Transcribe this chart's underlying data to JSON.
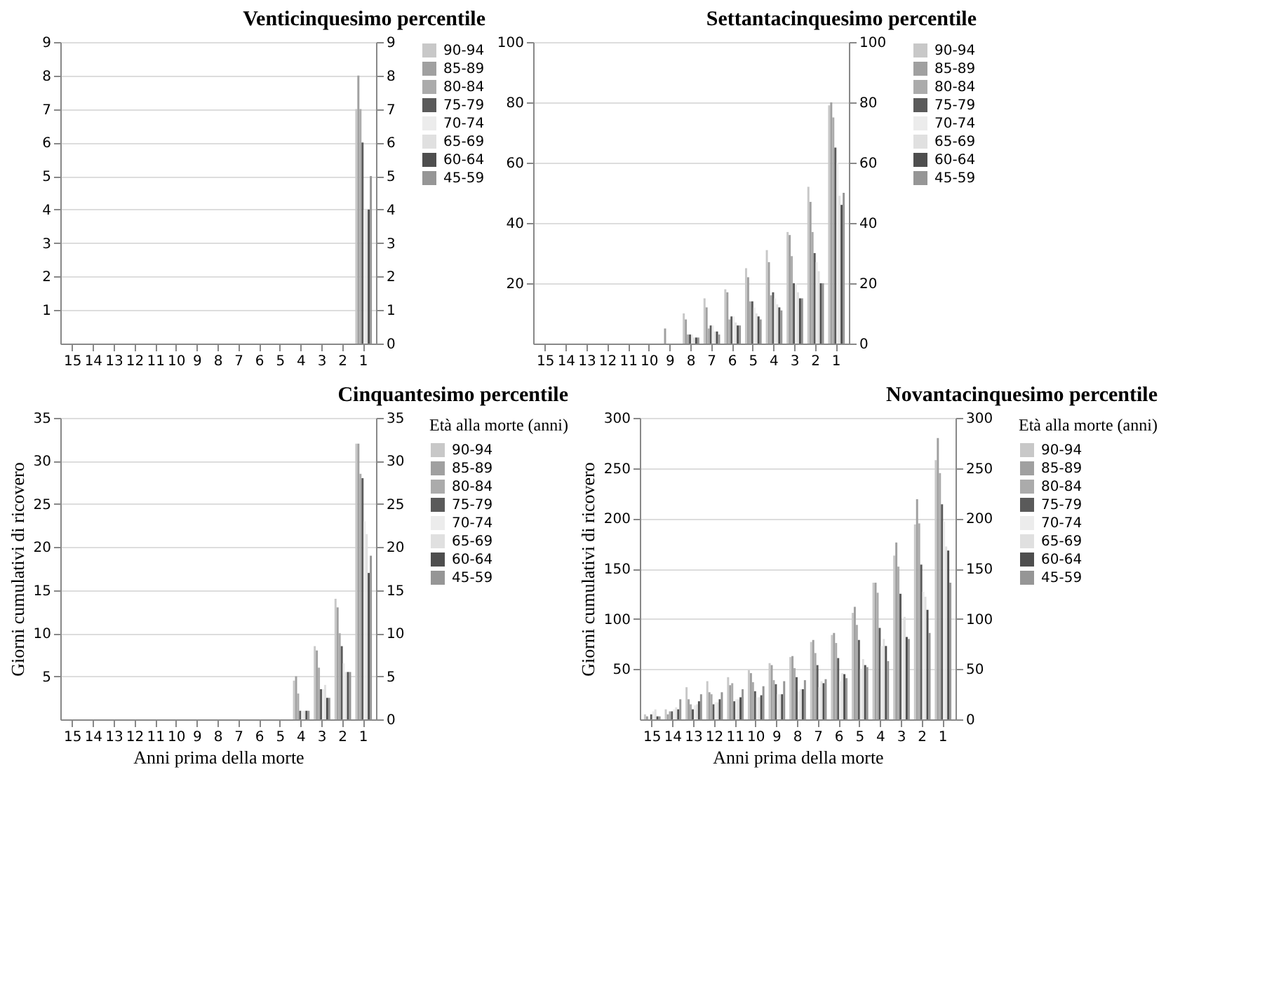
{
  "chart_data": [
    {
      "type": "bar",
      "title": "Venticinquesimo percentile",
      "categories": [
        "15",
        "14",
        "13",
        "12",
        "11",
        "10",
        "9",
        "8",
        "7",
        "6",
        "5",
        "4",
        "3",
        "2",
        "1"
      ],
      "ylim": [
        0,
        9
      ],
      "yticks": [
        1,
        2,
        3,
        4,
        5,
        6,
        7,
        8,
        9
      ],
      "y2lim": [
        0,
        9
      ],
      "y2ticks": [
        0,
        1,
        2,
        3,
        4,
        5,
        6,
        7,
        8,
        9
      ],
      "grid": true,
      "legend": "right",
      "series": [
        {
          "name": "90-94",
          "color": "#c8c8c8",
          "values": [
            0,
            0,
            0,
            0,
            0,
            0,
            0,
            0,
            0,
            0,
            0,
            0,
            0,
            0,
            7
          ]
        },
        {
          "name": "85-89",
          "color": "#a0a0a0",
          "values": [
            0,
            0,
            0,
            0,
            0,
            0,
            0,
            0,
            0,
            0,
            0,
            0,
            0,
            0,
            8
          ]
        },
        {
          "name": "80-84",
          "color": "#ababab",
          "values": [
            0,
            0,
            0,
            0,
            0,
            0,
            0,
            0,
            0,
            0,
            0,
            0,
            0,
            0,
            7
          ]
        },
        {
          "name": "75-79",
          "color": "#5a5a5a",
          "values": [
            0,
            0,
            0,
            0,
            0,
            0,
            0,
            0,
            0,
            0,
            0,
            0,
            0,
            0,
            6
          ]
        },
        {
          "name": "70-74",
          "color": "#ececec",
          "values": [
            0,
            0,
            0,
            0,
            0,
            0,
            0,
            0,
            0,
            0,
            0,
            0,
            0,
            0,
            4
          ]
        },
        {
          "name": "65-69",
          "color": "#e0e0e0",
          "values": [
            0,
            0,
            0,
            0,
            0,
            0,
            0,
            0,
            0,
            0,
            0,
            0,
            0,
            0,
            4
          ]
        },
        {
          "name": "60-64",
          "color": "#4e4e4e",
          "values": [
            0,
            0,
            0,
            0,
            0,
            0,
            0,
            0,
            0,
            0,
            0,
            0,
            0,
            0,
            4
          ]
        },
        {
          "name": "45-59",
          "color": "#969696",
          "values": [
            0,
            0,
            0,
            0,
            0,
            0,
            0,
            0,
            0,
            0,
            0,
            0,
            0,
            0,
            5
          ]
        }
      ]
    },
    {
      "type": "bar",
      "title": "Settantacinquesimo percentile",
      "categories": [
        "15",
        "14",
        "13",
        "12",
        "11",
        "10",
        "9",
        "8",
        "7",
        "6",
        "5",
        "4",
        "3",
        "2",
        "1"
      ],
      "ylim": [
        0,
        100
      ],
      "yticks": [
        20,
        40,
        60,
        80,
        100
      ],
      "y2lim": [
        0,
        100
      ],
      "y2ticks": [
        0,
        20,
        40,
        60,
        80,
        100
      ],
      "grid": true,
      "legend": "right",
      "series": [
        {
          "name": "90-94",
          "color": "#c8c8c8",
          "values": [
            0,
            0,
            0,
            0,
            0,
            0,
            0,
            10,
            15,
            18,
            25,
            31,
            37,
            52,
            79
          ]
        },
        {
          "name": "85-89",
          "color": "#a0a0a0",
          "values": [
            0,
            0,
            0,
            0,
            0,
            0,
            5,
            8,
            12,
            17,
            22,
            27,
            36,
            47,
            80
          ]
        },
        {
          "name": "80-84",
          "color": "#ababab",
          "values": [
            0,
            0,
            0,
            0,
            0,
            0,
            0,
            3,
            5,
            8,
            14,
            16,
            29,
            37,
            75
          ]
        },
        {
          "name": "75-79",
          "color": "#5a5a5a",
          "values": [
            0,
            0,
            0,
            0,
            0,
            0,
            0,
            3,
            6,
            9,
            14,
            17,
            20,
            30,
            65
          ]
        },
        {
          "name": "70-74",
          "color": "#ececec",
          "values": [
            0,
            0,
            0,
            0,
            0,
            0,
            0,
            3,
            6,
            9,
            12,
            15,
            20,
            27,
            60
          ]
        },
        {
          "name": "65-69",
          "color": "#e0e0e0",
          "values": [
            0,
            0,
            0,
            0,
            0,
            0,
            0,
            2,
            4,
            7,
            10,
            13,
            17,
            24,
            49
          ]
        },
        {
          "name": "60-64",
          "color": "#4e4e4e",
          "values": [
            0,
            0,
            0,
            0,
            0,
            0,
            0,
            2,
            4,
            6,
            9,
            12,
            15,
            20,
            46
          ]
        },
        {
          "name": "45-59",
          "color": "#969696",
          "values": [
            0,
            0,
            0,
            0,
            0,
            0,
            0,
            2,
            3,
            6,
            8,
            11,
            15,
            20,
            50
          ]
        }
      ]
    },
    {
      "type": "bar",
      "title": "Cinquantesimo percentile",
      "xlabel": "Anni prima della morte",
      "ylabel": "Giorni cumulativi di ricovero",
      "legend_title": "Età alla morte (anni)",
      "categories": [
        "15",
        "14",
        "13",
        "12",
        "11",
        "10",
        "9",
        "8",
        "7",
        "6",
        "5",
        "4",
        "3",
        "2",
        "1"
      ],
      "ylim": [
        0,
        35
      ],
      "yticks": [
        5,
        10,
        15,
        20,
        25,
        30,
        35
      ],
      "y2lim": [
        0,
        35
      ],
      "y2ticks": [
        0,
        5,
        10,
        15,
        20,
        25,
        30,
        35
      ],
      "grid": true,
      "legend": "right",
      "series": [
        {
          "name": "90-94",
          "color": "#c8c8c8",
          "values": [
            0,
            0,
            0,
            0,
            0,
            0,
            0,
            0,
            0,
            0,
            0,
            4.5,
            8.5,
            14,
            32
          ]
        },
        {
          "name": "85-89",
          "color": "#a0a0a0",
          "values": [
            0,
            0,
            0,
            0,
            0,
            0,
            0,
            0,
            0,
            0,
            0,
            5,
            8,
            13,
            32
          ]
        },
        {
          "name": "80-84",
          "color": "#ababab",
          "values": [
            0,
            0,
            0,
            0,
            0,
            0,
            0,
            0,
            0,
            0,
            0,
            3,
            6,
            10,
            28.5
          ]
        },
        {
          "name": "75-79",
          "color": "#5a5a5a",
          "values": [
            0,
            0,
            0,
            0,
            0,
            0,
            0,
            0,
            0,
            0,
            0,
            1,
            3.5,
            8.5,
            28
          ]
        },
        {
          "name": "70-74",
          "color": "#ececec",
          "values": [
            0,
            0,
            0,
            0,
            0,
            0,
            0,
            0,
            0,
            0,
            0,
            1,
            3.5,
            6.5,
            23
          ]
        },
        {
          "name": "65-69",
          "color": "#e0e0e0",
          "values": [
            0,
            0,
            0,
            0,
            0,
            0,
            0,
            0,
            0,
            0,
            0,
            1,
            4,
            5.5,
            21.5
          ]
        },
        {
          "name": "60-64",
          "color": "#4e4e4e",
          "values": [
            0,
            0,
            0,
            0,
            0,
            0,
            0,
            0,
            0,
            0,
            0,
            1,
            2.5,
            5.5,
            17
          ]
        },
        {
          "name": "45-59",
          "color": "#969696",
          "values": [
            0,
            0,
            0,
            0,
            0,
            0,
            0,
            0,
            0,
            0,
            0,
            1,
            2.5,
            5.5,
            19
          ]
        }
      ]
    },
    {
      "type": "bar",
      "title": "Novantacinquesimo percentile",
      "xlabel": "Anni prima della morte",
      "ylabel": "Giorni cumulativi di ricovero",
      "legend_title": "Età alla morte (anni)",
      "categories": [
        "15",
        "14",
        "13",
        "12",
        "11",
        "10",
        "9",
        "8",
        "7",
        "6",
        "5",
        "4",
        "3",
        "2",
        "1"
      ],
      "ylim": [
        0,
        300
      ],
      "yticks": [
        50,
        100,
        150,
        200,
        250,
        300
      ],
      "y2lim": [
        0,
        300
      ],
      "y2ticks": [
        0,
        50,
        100,
        150,
        200,
        250,
        300
      ],
      "grid": true,
      "legend": "right",
      "series": [
        {
          "name": "90-94",
          "color": "#c8c8c8",
          "values": [
            5,
            10,
            32,
            38,
            42,
            49,
            56,
            62,
            77,
            84,
            106,
            136,
            163,
            194,
            258
          ]
        },
        {
          "name": "85-89",
          "color": "#a0a0a0",
          "values": [
            3,
            5,
            20,
            27,
            34,
            46,
            54,
            63,
            79,
            86,
            112,
            136,
            176,
            219,
            280
          ]
        },
        {
          "name": "80-84",
          "color": "#ababab",
          "values": [
            0,
            8,
            15,
            25,
            36,
            37,
            39,
            51,
            66,
            76,
            94,
            126,
            152,
            195,
            245
          ]
        },
        {
          "name": "75-79",
          "color": "#5a5a5a",
          "values": [
            5,
            8,
            10,
            15,
            18,
            28,
            35,
            42,
            54,
            61,
            79,
            91,
            125,
            154,
            214
          ]
        },
        {
          "name": "70-74",
          "color": "#ececec",
          "values": [
            8,
            10,
            14,
            17,
            20,
            22,
            25,
            28,
            32,
            38,
            50,
            73,
            99,
            127,
            197
          ]
        },
        {
          "name": "65-69",
          "color": "#e0e0e0",
          "values": [
            10,
            12,
            15,
            17,
            20,
            22,
            25,
            30,
            38,
            46,
            60,
            80,
            102,
            122,
            172
          ]
        },
        {
          "name": "60-64",
          "color": "#4e4e4e",
          "values": [
            3,
            10,
            18,
            20,
            22,
            24,
            25,
            30,
            36,
            45,
            54,
            73,
            82,
            109,
            168
          ]
        },
        {
          "name": "45-59",
          "color": "#969696",
          "values": [
            3,
            20,
            25,
            27,
            30,
            33,
            38,
            39,
            40,
            41,
            52,
            58,
            80,
            86,
            136
          ]
        }
      ]
    }
  ]
}
